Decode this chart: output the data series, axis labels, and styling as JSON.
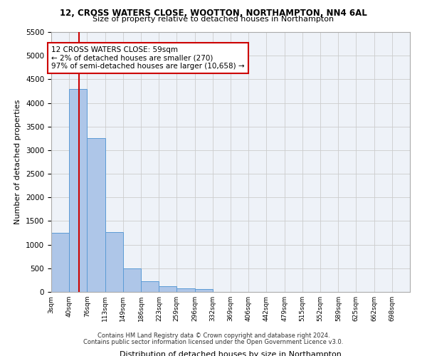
{
  "title1": "12, CROSS WATERS CLOSE, WOOTTON, NORTHAMPTON, NN4 6AL",
  "title2": "Size of property relative to detached houses in Northampton",
  "xlabel": "Distribution of detached houses by size in Northampton",
  "ylabel": "Number of detached properties",
  "footer1": "Contains HM Land Registry data © Crown copyright and database right 2024.",
  "footer2": "Contains public sector information licensed under the Open Government Licence v3.0.",
  "annotation_title": "12 CROSS WATERS CLOSE: 59sqm",
  "annotation_line1": "← 2% of detached houses are smaller (270)",
  "annotation_line2": "97% of semi-detached houses are larger (10,658) →",
  "property_size": 59,
  "bar_edges": [
    3,
    40,
    76,
    113,
    149,
    186,
    223,
    259,
    296,
    332,
    369,
    406,
    442,
    479,
    515,
    552,
    589,
    625,
    662,
    698,
    735
  ],
  "bar_heights": [
    1250,
    4300,
    3250,
    1270,
    490,
    220,
    120,
    80,
    60,
    0,
    0,
    0,
    0,
    0,
    0,
    0,
    0,
    0,
    0,
    0
  ],
  "bar_color": "#aec6e8",
  "bar_edge_color": "#5b9bd5",
  "vline_color": "#cc0000",
  "vline_x": 59,
  "annotation_box_color": "#cc0000",
  "ylim": [
    0,
    5500
  ],
  "yticks": [
    0,
    500,
    1000,
    1500,
    2000,
    2500,
    3000,
    3500,
    4000,
    4500,
    5000,
    5500
  ],
  "grid_color": "#cccccc",
  "background_color": "#ffffff",
  "plot_bg_color": "#eef2f8"
}
